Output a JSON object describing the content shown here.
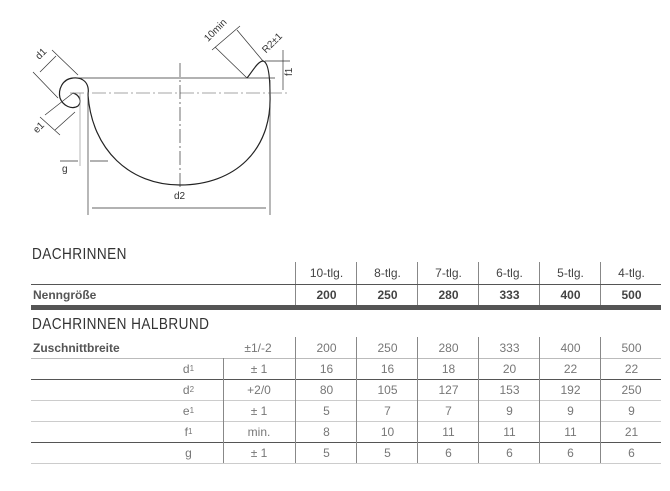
{
  "diagram": {
    "labels": {
      "d1": "d1",
      "d2": "d2",
      "e1": "e1",
      "f1": "f1",
      "g": "g",
      "min": "10min",
      "radius": "R2±1"
    }
  },
  "section1": {
    "title": "DACHRINNEN",
    "columns": [
      "10-tlg.",
      "8-tlg.",
      "7-tlg.",
      "6-tlg.",
      "5-tlg.",
      "4-tlg."
    ],
    "nenngroesse": {
      "label": "Nenngröße",
      "values": [
        "200",
        "250",
        "280",
        "333",
        "400",
        "500"
      ]
    }
  },
  "section2": {
    "title": "DACHRINNEN HALBRUND",
    "rows": [
      {
        "label": "Zuschnittbreite",
        "symbol": "",
        "sub": "",
        "tolerance": "±1/-2",
        "values": [
          "200",
          "250",
          "280",
          "333",
          "400",
          "500"
        ]
      },
      {
        "label": "",
        "symbol": "d",
        "sub": "1",
        "tolerance": "± 1",
        "values": [
          "16",
          "16",
          "18",
          "20",
          "22",
          "22"
        ]
      },
      {
        "label": "",
        "symbol": "d",
        "sub": "2",
        "tolerance": "+2/0",
        "values": [
          "80",
          "105",
          "127",
          "153",
          "192",
          "250"
        ]
      },
      {
        "label": "",
        "symbol": "e",
        "sub": "1",
        "tolerance": "± 1",
        "values": [
          "5",
          "7",
          "7",
          "9",
          "9",
          "9"
        ]
      },
      {
        "label": "",
        "symbol": "f",
        "sub": "1",
        "tolerance": "min.",
        "values": [
          "8",
          "10",
          "11",
          "11",
          "11",
          "21"
        ]
      },
      {
        "label": "",
        "symbol": "g",
        "sub": "",
        "tolerance": "± 1",
        "values": [
          "5",
          "5",
          "6",
          "6",
          "6",
          "6"
        ]
      }
    ]
  }
}
